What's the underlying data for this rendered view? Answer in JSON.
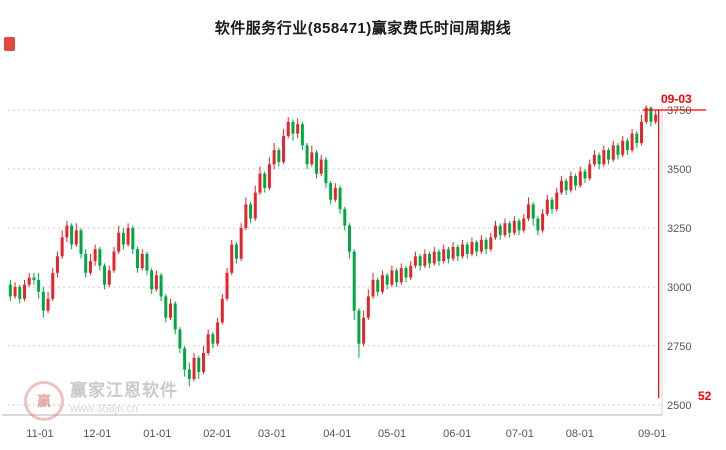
{
  "title": "软件服务行业(858471)赢家费氏时间周期线",
  "markers": {
    "date_label": "09-03",
    "count_label": "52",
    "color": "#fe0000"
  },
  "watermark": {
    "logo_char": "赢",
    "name": "赢家江恩软件",
    "url": "www.368jn.cn"
  },
  "colors": {
    "up": "#e9232b",
    "down": "#00a843",
    "grid": "#cccccc",
    "axis": "#b5b5b5",
    "label": "#555555"
  },
  "chart_data": {
    "type": "candlestick",
    "title": "软件服务行业(858471)赢家费氏时间周期线",
    "ylim": [
      2500,
      3750
    ],
    "yticks": [
      3750,
      3500,
      3250,
      3000,
      2750,
      2500
    ],
    "xticks": [
      "11-01",
      "12-01",
      "01-01",
      "02-01",
      "03-01",
      "04-01",
      "05-01",
      "06-01",
      "07-01",
      "08-01",
      "09-01"
    ],
    "candle_columns": [
      "open",
      "high",
      "low",
      "close"
    ],
    "candles": [
      [
        3010,
        3030,
        2940,
        2960
      ],
      [
        2960,
        3020,
        2950,
        3000
      ],
      [
        3000,
        3010,
        2930,
        2950
      ],
      [
        2950,
        3030,
        2940,
        3010
      ],
      [
        3010,
        3060,
        3000,
        3040
      ],
      [
        3040,
        3060,
        3010,
        3030
      ],
      [
        3030,
        3060,
        2950,
        2980
      ],
      [
        2980,
        3000,
        2870,
        2900
      ],
      [
        2900,
        2980,
        2890,
        2950
      ],
      [
        2950,
        3080,
        2940,
        3060
      ],
      [
        3060,
        3150,
        3040,
        3130
      ],
      [
        3130,
        3240,
        3120,
        3210
      ],
      [
        3210,
        3280,
        3190,
        3260
      ],
      [
        3260,
        3270,
        3160,
        3180
      ],
      [
        3180,
        3270,
        3170,
        3240
      ],
      [
        3240,
        3250,
        3120,
        3140
      ],
      [
        3140,
        3160,
        3040,
        3060
      ],
      [
        3060,
        3140,
        3050,
        3110
      ],
      [
        3110,
        3180,
        3090,
        3160
      ],
      [
        3160,
        3170,
        3070,
        3090
      ],
      [
        3090,
        3100,
        2990,
        3010
      ],
      [
        3010,
        3090,
        3000,
        3070
      ],
      [
        3070,
        3170,
        3060,
        3150
      ],
      [
        3150,
        3260,
        3140,
        3230
      ],
      [
        3230,
        3250,
        3160,
        3180
      ],
      [
        3180,
        3270,
        3170,
        3250
      ],
      [
        3250,
        3260,
        3140,
        3160
      ],
      [
        3160,
        3170,
        3060,
        3080
      ],
      [
        3080,
        3160,
        3070,
        3140
      ],
      [
        3140,
        3150,
        3050,
        3070
      ],
      [
        3070,
        3080,
        2970,
        2990
      ],
      [
        2990,
        3070,
        2980,
        3050
      ],
      [
        3050,
        3060,
        2940,
        2960
      ],
      [
        2960,
        2970,
        2850,
        2870
      ],
      [
        2870,
        2950,
        2860,
        2930
      ],
      [
        2930,
        2940,
        2800,
        2820
      ],
      [
        2820,
        2830,
        2720,
        2740
      ],
      [
        2740,
        2750,
        2620,
        2650
      ],
      [
        2650,
        2680,
        2580,
        2610
      ],
      [
        2610,
        2720,
        2600,
        2700
      ],
      [
        2700,
        2710,
        2610,
        2640
      ],
      [
        2640,
        2750,
        2630,
        2720
      ],
      [
        2720,
        2820,
        2710,
        2800
      ],
      [
        2800,
        2810,
        2740,
        2760
      ],
      [
        2760,
        2870,
        2750,
        2850
      ],
      [
        2850,
        2970,
        2840,
        2950
      ],
      [
        2950,
        3080,
        2940,
        3060
      ],
      [
        3060,
        3200,
        3050,
        3180
      ],
      [
        3180,
        3190,
        3100,
        3120
      ],
      [
        3120,
        3270,
        3110,
        3250
      ],
      [
        3250,
        3380,
        3240,
        3350
      ],
      [
        3350,
        3360,
        3270,
        3290
      ],
      [
        3290,
        3430,
        3280,
        3400
      ],
      [
        3400,
        3510,
        3390,
        3480
      ],
      [
        3480,
        3490,
        3400,
        3420
      ],
      [
        3420,
        3550,
        3410,
        3520
      ],
      [
        3520,
        3610,
        3500,
        3580
      ],
      [
        3580,
        3590,
        3510,
        3530
      ],
      [
        3530,
        3670,
        3520,
        3640
      ],
      [
        3640,
        3720,
        3630,
        3700
      ],
      [
        3700,
        3710,
        3620,
        3650
      ],
      [
        3650,
        3715,
        3630,
        3690
      ],
      [
        3690,
        3700,
        3580,
        3600
      ],
      [
        3600,
        3610,
        3500,
        3520
      ],
      [
        3520,
        3600,
        3510,
        3570
      ],
      [
        3570,
        3580,
        3460,
        3480
      ],
      [
        3480,
        3560,
        3470,
        3540
      ],
      [
        3540,
        3550,
        3420,
        3440
      ],
      [
        3440,
        3450,
        3350,
        3370
      ],
      [
        3370,
        3440,
        3360,
        3420
      ],
      [
        3420,
        3430,
        3310,
        3330
      ],
      [
        3330,
        3340,
        3240,
        3260
      ],
      [
        3260,
        3270,
        3120,
        3150
      ],
      [
        3150,
        3160,
        2860,
        2900
      ],
      [
        2900,
        2910,
        2700,
        2760
      ],
      [
        2760,
        2900,
        2750,
        2870
      ],
      [
        2870,
        2990,
        2860,
        2960
      ],
      [
        2960,
        3060,
        2950,
        3030
      ],
      [
        3030,
        3040,
        2960,
        2980
      ],
      [
        2980,
        3070,
        2970,
        3050
      ],
      [
        3050,
        3060,
        2990,
        3010
      ],
      [
        3010,
        3090,
        3000,
        3070
      ],
      [
        3070,
        3080,
        3000,
        3020
      ],
      [
        3020,
        3100,
        3010,
        3080
      ],
      [
        3080,
        3090,
        3020,
        3040
      ],
      [
        3040,
        3110,
        3030,
        3090
      ],
      [
        3090,
        3150,
        3080,
        3130
      ],
      [
        3130,
        3140,
        3070,
        3090
      ],
      [
        3090,
        3160,
        3080,
        3140
      ],
      [
        3140,
        3150,
        3080,
        3100
      ],
      [
        3100,
        3170,
        3090,
        3150
      ],
      [
        3150,
        3160,
        3090,
        3110
      ],
      [
        3110,
        3180,
        3100,
        3160
      ],
      [
        3160,
        3170,
        3100,
        3120
      ],
      [
        3120,
        3190,
        3110,
        3170
      ],
      [
        3170,
        3180,
        3110,
        3130
      ],
      [
        3130,
        3200,
        3120,
        3180
      ],
      [
        3180,
        3190,
        3120,
        3140
      ],
      [
        3140,
        3210,
        3130,
        3190
      ],
      [
        3190,
        3200,
        3130,
        3150
      ],
      [
        3150,
        3220,
        3140,
        3200
      ],
      [
        3200,
        3210,
        3140,
        3160
      ],
      [
        3160,
        3230,
        3150,
        3210
      ],
      [
        3210,
        3280,
        3200,
        3260
      ],
      [
        3260,
        3270,
        3200,
        3220
      ],
      [
        3220,
        3290,
        3210,
        3270
      ],
      [
        3270,
        3280,
        3210,
        3230
      ],
      [
        3230,
        3300,
        3220,
        3280
      ],
      [
        3280,
        3290,
        3220,
        3240
      ],
      [
        3240,
        3310,
        3230,
        3290
      ],
      [
        3290,
        3380,
        3280,
        3350
      ],
      [
        3350,
        3360,
        3260,
        3290
      ],
      [
        3290,
        3300,
        3220,
        3240
      ],
      [
        3240,
        3330,
        3230,
        3310
      ],
      [
        3310,
        3390,
        3300,
        3370
      ],
      [
        3370,
        3380,
        3310,
        3330
      ],
      [
        3330,
        3420,
        3320,
        3400
      ],
      [
        3400,
        3470,
        3390,
        3450
      ],
      [
        3450,
        3460,
        3390,
        3410
      ],
      [
        3410,
        3490,
        3400,
        3470
      ],
      [
        3470,
        3480,
        3410,
        3430
      ],
      [
        3430,
        3510,
        3420,
        3490
      ],
      [
        3490,
        3500,
        3440,
        3460
      ],
      [
        3460,
        3540,
        3450,
        3520
      ],
      [
        3520,
        3580,
        3510,
        3560
      ],
      [
        3560,
        3570,
        3500,
        3520
      ],
      [
        3520,
        3600,
        3510,
        3580
      ],
      [
        3580,
        3590,
        3520,
        3540
      ],
      [
        3540,
        3620,
        3530,
        3600
      ],
      [
        3600,
        3610,
        3540,
        3560
      ],
      [
        3560,
        3640,
        3550,
        3620
      ],
      [
        3620,
        3630,
        3560,
        3580
      ],
      [
        3580,
        3670,
        3570,
        3650
      ],
      [
        3650,
        3660,
        3590,
        3610
      ],
      [
        3610,
        3730,
        3600,
        3700
      ],
      [
        3700,
        3770,
        3690,
        3760
      ],
      [
        3760,
        3765,
        3680,
        3700
      ],
      [
        3700,
        3750,
        3690,
        3730
      ]
    ]
  }
}
